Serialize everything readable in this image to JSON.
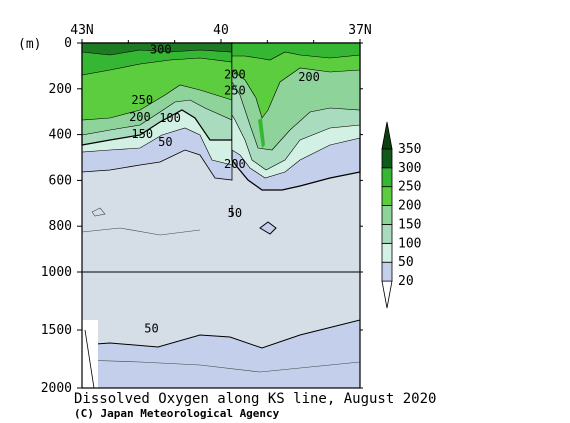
{
  "chart_data": {
    "type": "heatmap",
    "title": "Dissolved Oxygen along KS line, August 2020",
    "credit": "(C) Japan Meteorological Agency",
    "y_unit_label": "(m)",
    "x_ticks": [
      {
        "label": "43N",
        "value": 43
      },
      {
        "label": "40",
        "value": 40
      },
      {
        "label": "37N",
        "value": 37
      }
    ],
    "y_ticks_upper": [
      0,
      200,
      400,
      600,
      800,
      1000
    ],
    "y_ticks_lower": [
      1500,
      2000
    ],
    "y_break_depth": 1000,
    "colorbar": {
      "levels": [
        20,
        50,
        100,
        150,
        200,
        250,
        300,
        350
      ],
      "labels": [
        "20",
        "50",
        "100",
        "150",
        "200",
        "250",
        "300",
        "350"
      ],
      "colors": [
        "#ffffff",
        "#c4cfec",
        "#d3f0e4",
        "#a9dcbf",
        "#8ed49a",
        "#5bcd3e",
        "#35b734",
        "#0f5a18",
        "#0b3f10"
      ]
    },
    "contour_labels": [
      {
        "text": "300",
        "lat": 41.3,
        "depth": 30
      },
      {
        "text": "250",
        "lat": 41.7,
        "depth": 250
      },
      {
        "text": "200",
        "lat": 41.75,
        "depth": 325
      },
      {
        "text": "100",
        "lat": 41.1,
        "depth": 330
      },
      {
        "text": "150",
        "lat": 41.7,
        "depth": 400
      },
      {
        "text": "50",
        "lat": 41.2,
        "depth": 435
      },
      {
        "text": "200",
        "lat": 39.7,
        "depth": 140
      },
      {
        "text": "200",
        "lat": 38.1,
        "depth": 150
      },
      {
        "text": "250",
        "lat": 39.7,
        "depth": 210
      },
      {
        "text": "200",
        "lat": 39.7,
        "depth": 530
      },
      {
        "text": "50",
        "lat": 39.7,
        "depth": 745
      },
      {
        "text": "50",
        "lat": 41.5,
        "depth": 1490
      }
    ]
  }
}
